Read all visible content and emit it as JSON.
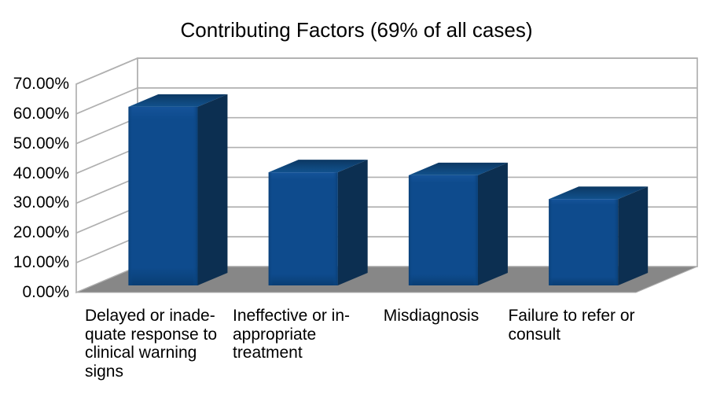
{
  "chart_data": {
    "type": "bar",
    "variant": "3d",
    "title": "Contributing Factors (69% of all cases)",
    "categories": [
      "Delayed or inadequate response to clinical warning signs",
      "Ineffective or inappropriate treatment",
      "Misdiagnosis",
      "Failure to refer or consult"
    ],
    "category_label_lines": [
      [
        "Delayed or inade-",
        "quate response to",
        "clinical warning",
        "signs"
      ],
      [
        "Ineffective or in-",
        "appropriate",
        "treatment"
      ],
      [
        "Misdiagnosis"
      ],
      [
        "Failure to refer or",
        "consult"
      ]
    ],
    "values": [
      60,
      38,
      37,
      29
    ],
    "value_unit": "%",
    "ylim": [
      0,
      70
    ],
    "ytick_step": 10,
    "ytick_labels": [
      "0.00%",
      "10.00%",
      "20.00%",
      "30.00%",
      "40.00%",
      "50.00%",
      "60.00%",
      "70.00%"
    ],
    "xlabel": "",
    "ylabel": "",
    "legend": "none",
    "grid": true,
    "colors": {
      "background": "#ffffff",
      "text": "#000000",
      "gridline": "#b0b0b0",
      "wall": "#ffffff",
      "floor": "#878787",
      "bar_front": "#0e4b8d",
      "bar_front_edge": "#093e74",
      "bar_front_bevel": "#155399",
      "bar_side": "#0c2f51",
      "bar_top_back": "#0c3863",
      "bar_top_front": "#11518d"
    }
  }
}
